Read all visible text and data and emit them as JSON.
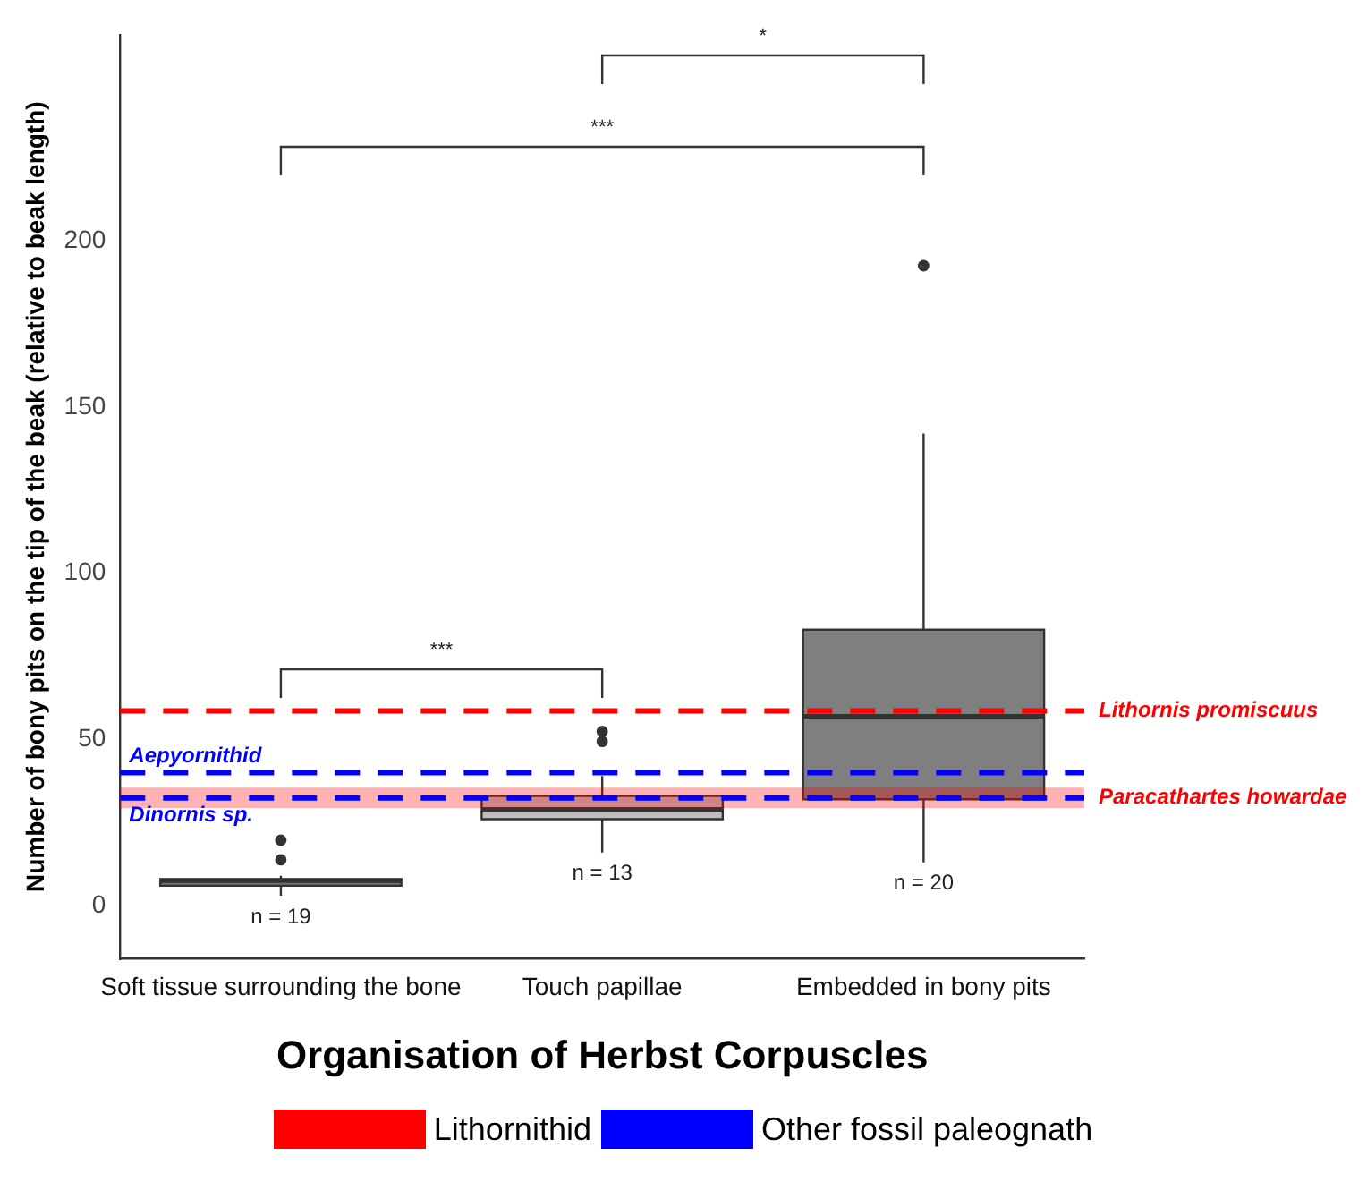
{
  "chart_data": {
    "type": "box",
    "xlabel": "Organisation of Herbst Corpuscles",
    "ylabel": "Number of bony pits on the tip of the beak (relative to beak length)",
    "categories": [
      "Soft tissue surrounding the bone",
      "Touch papillae",
      "Embedded in bony pits"
    ],
    "colors": [
      "#737373",
      "#bebebe",
      "#7f7f7f"
    ],
    "boxes": [
      {
        "low": 3,
        "q1": 6,
        "median": 7.5,
        "q3": 8,
        "high": 9,
        "outliers": [
          13.8,
          19.7
        ]
      },
      {
        "low": 16,
        "q1": 26,
        "median": 29,
        "q3": 33,
        "high": 39,
        "outliers": [
          49.4,
          52.4
        ]
      },
      {
        "low": 13,
        "q1": 32,
        "median": 57,
        "q3": 83,
        "high": 142,
        "outliers": [
          192.5
        ]
      }
    ],
    "series": [
      {
        "name": "Lithornithid",
        "color": "#ff0000",
        "values": [
          null,
          null,
          null
        ]
      },
      {
        "name": "Other fossil paleognath",
        "color": "#0000ff",
        "values": [
          null,
          null,
          null
        ]
      }
    ],
    "ref_lines": [
      {
        "axis": "y",
        "value": 58.6,
        "label": "Lithornis promiscuus",
        "color": "#ff0000",
        "line_style": "dashed"
      },
      {
        "axis": "y",
        "value": 40,
        "label": "Aepyornithid",
        "color": "#0000ff",
        "line_style": "dashed"
      },
      {
        "axis": "y",
        "value": 32.4,
        "label": "Dinornis sp.",
        "color": "#0000ff",
        "line_style": "dashed"
      }
    ],
    "bands": [
      {
        "axis": "y",
        "from": 29.4,
        "to": 35.5,
        "label": "Paracathartes howardae",
        "color": "#ff0000"
      }
    ],
    "annotations": [
      "n = 19",
      "n = 13",
      "n = 20",
      "***",
      "***",
      "*"
    ],
    "ylim": [
      -16,
      262
    ],
    "yticks": [
      0,
      50,
      100,
      150,
      200
    ],
    "grid": false,
    "legend": "bottom"
  }
}
